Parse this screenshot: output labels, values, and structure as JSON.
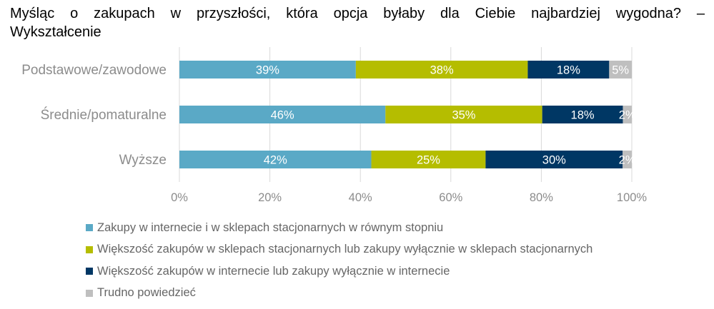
{
  "title_lines": [
    "Myśląc o zakupach w przyszłości, która opcja byłaby dla Ciebie najbardziej wygodna? –",
    "Wykształcenie"
  ],
  "chart_data": {
    "type": "bar",
    "orientation": "horizontal",
    "stacked": true,
    "title": "Myśląc o zakupach w przyszłości, która opcja byłaby dla Ciebie najbardziej wygodna? – Wykształcenie",
    "categories": [
      "Podstawowe/zawodowe",
      "Średnie/pomaturalne",
      "Wyższe"
    ],
    "series": [
      {
        "name": "Zakupy w internecie i w sklepach stacjonarnych w równym stopniu",
        "color": "#5aa9c6",
        "values": [
          39,
          46,
          42
        ],
        "labels": [
          "39%",
          "46%",
          "42%"
        ]
      },
      {
        "name": "Większość zakupów w sklepach stacjonarnych lub zakupy wyłącznie w sklepach stacjonarnych",
        "color": "#b5bd00",
        "values": [
          38,
          35,
          25
        ],
        "labels": [
          "38%",
          "35%",
          "25%"
        ]
      },
      {
        "name": "Większość zakupów w internecie lub zakupy wyłącznie w internecie",
        "color": "#003764",
        "values": [
          18,
          18,
          30
        ],
        "labels": [
          "18%",
          "18%",
          "30%"
        ]
      },
      {
        "name": "Trudno powiedzieć",
        "color": "#bfbfbf",
        "values": [
          5,
          2,
          2
        ],
        "labels": [
          "5%",
          "2%",
          "2%"
        ]
      }
    ],
    "xlim": [
      0,
      100
    ],
    "x_ticks": [
      "0%",
      "20%",
      "40%",
      "60%",
      "80%",
      "100%"
    ],
    "xlabel": "",
    "ylabel": "",
    "legend_position": "bottom",
    "grid": true
  }
}
